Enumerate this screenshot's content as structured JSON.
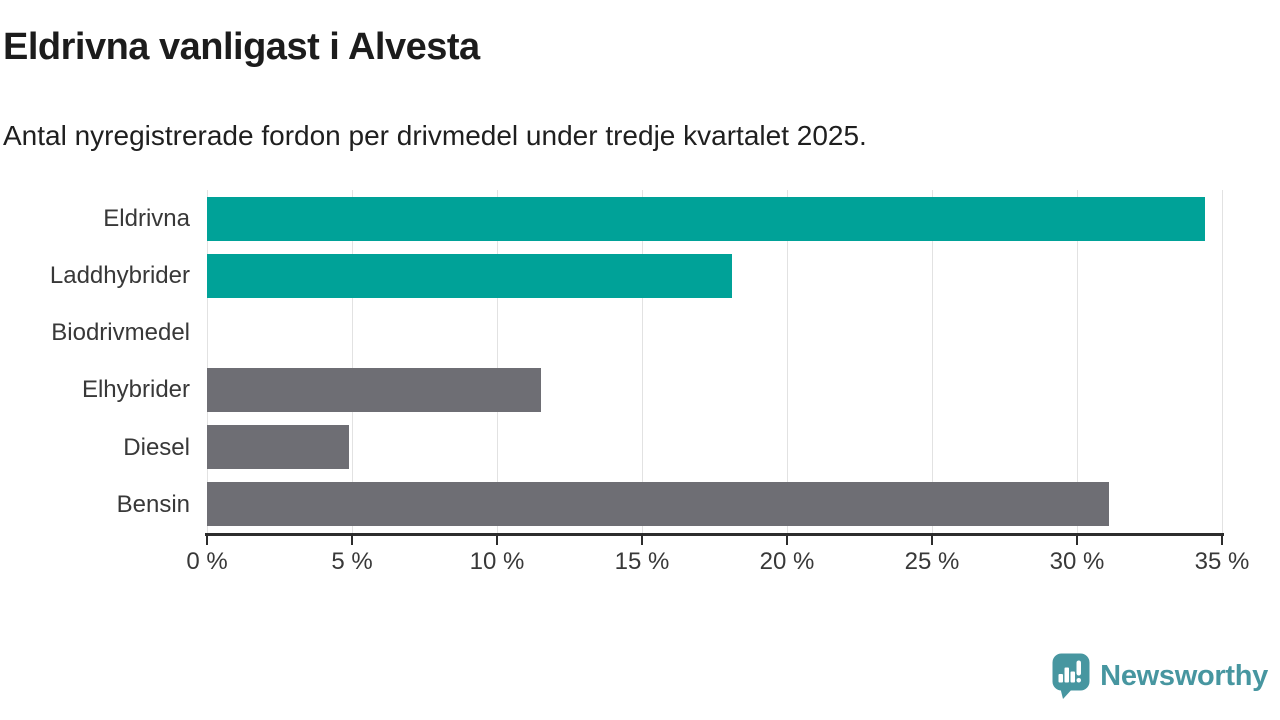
{
  "header": {
    "title": "Eldrivna vanligast i Alvesta",
    "subtitle": "Antal nyregistrerade fordon per drivmedel under tredje kvartalet 2025."
  },
  "chart_data": {
    "type": "bar",
    "orientation": "horizontal",
    "title": "Eldrivna vanligast i Alvesta",
    "subtitle": "Antal nyregistrerade fordon per drivmedel under tredje kvartalet 2025.",
    "categories": [
      "Eldrivna",
      "Laddhybrider",
      "Biodrivmedel",
      "Elhybrider",
      "Diesel",
      "Bensin"
    ],
    "values": [
      34.4,
      18.1,
      0,
      11.5,
      4.9,
      31.1
    ],
    "unit": "%",
    "xlim": [
      0,
      35
    ],
    "ticks": [
      0,
      5,
      10,
      15,
      20,
      25,
      30,
      35
    ],
    "tick_labels": [
      "0 %",
      "5 %",
      "10 %",
      "15 %",
      "20 %",
      "25 %",
      "30 %",
      "35 %"
    ],
    "bar_colors": [
      "#00A298",
      "#00A298",
      "#6E6E74",
      "#6E6E74",
      "#6E6E74",
      "#6E6E74"
    ],
    "highlight_color": "#00A298",
    "default_color": "#6E6E74",
    "grid": true,
    "legend": false,
    "xlabel": "",
    "ylabel": ""
  },
  "footer": {
    "brand": "Newsworthy",
    "logo_color": "#4796A0"
  }
}
